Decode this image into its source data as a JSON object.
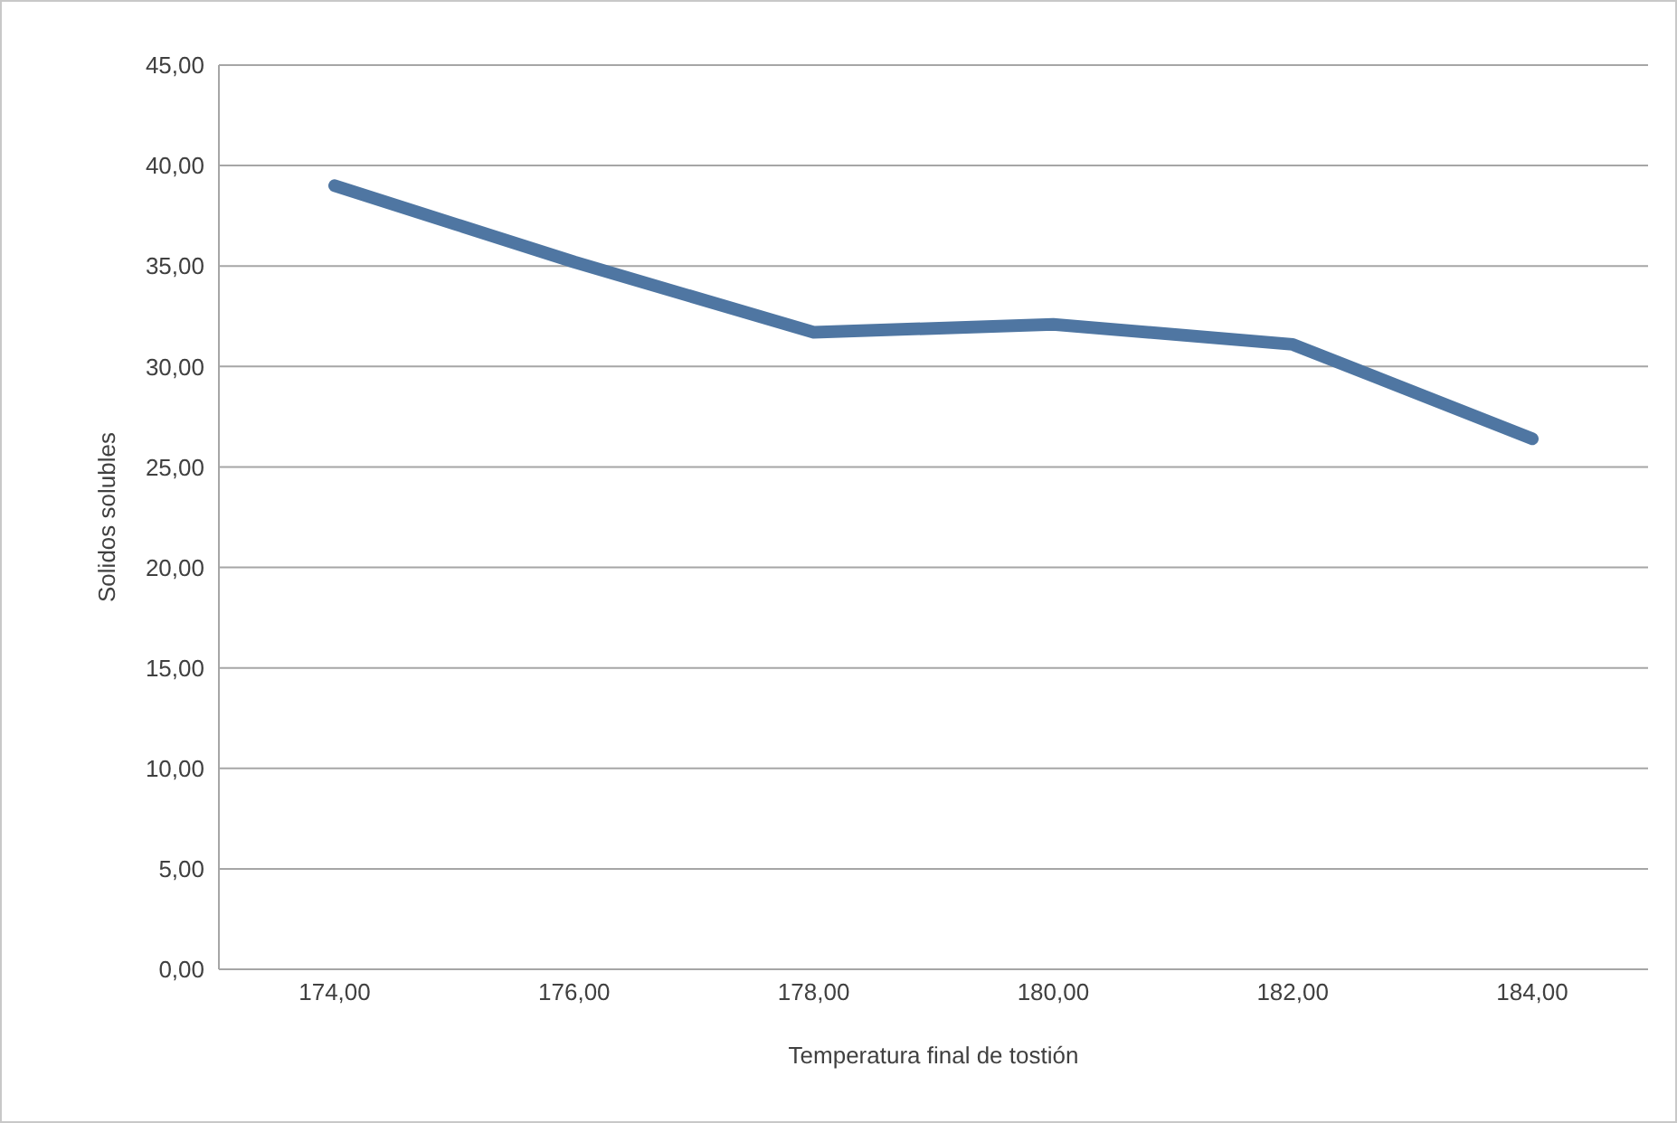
{
  "chart_data": {
    "type": "line",
    "xlabel": "Temperatura final de tostión",
    "ylabel": "Solidos solubles",
    "categories": [
      "174,00",
      "176,00",
      "178,00",
      "180,00",
      "182,00",
      "184,00"
    ],
    "series": [
      {
        "color": "#4f76a2",
        "values": [
          39.0,
          35.2,
          31.7,
          32.1,
          31.1,
          26.4
        ]
      }
    ],
    "ylim": [
      0,
      45
    ],
    "yticks": [
      {
        "value": 0,
        "label": "0,00"
      },
      {
        "value": 5,
        "label": "5,00"
      },
      {
        "value": 10,
        "label": "10,00"
      },
      {
        "value": 15,
        "label": "15,00"
      },
      {
        "value": 20,
        "label": "20,00"
      },
      {
        "value": 25,
        "label": "25,00"
      },
      {
        "value": 30,
        "label": "30,00"
      },
      {
        "value": 35,
        "label": "35,00"
      },
      {
        "value": 40,
        "label": "40,00"
      },
      {
        "value": 45,
        "label": "45,00"
      }
    ],
    "grid": "y",
    "marker": "none",
    "line_style": "solid"
  }
}
